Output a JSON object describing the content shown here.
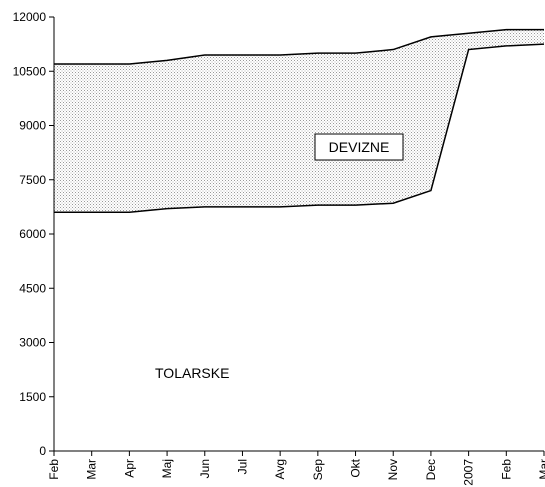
{
  "chart_data": {
    "type": "area",
    "stacked": true,
    "categories": [
      "Feb",
      "Mar",
      "Apr",
      "Maj",
      "Jun",
      "Jul",
      "Avg",
      "Sep",
      "Okt",
      "Nov",
      "Dec",
      "2007",
      "Feb",
      "Mar"
    ],
    "series": [
      {
        "name": "TOLARSKE",
        "values": [
          6600,
          6600,
          6600,
          6700,
          6750,
          6750,
          6750,
          6800,
          6800,
          6850,
          7200,
          11100,
          11200,
          11250
        ]
      },
      {
        "name": "DEVIZNE",
        "values": [
          4100,
          4100,
          4100,
          4100,
          4200,
          4200,
          4200,
          4200,
          4200,
          4250,
          4250,
          450,
          450,
          400
        ]
      }
    ],
    "totals": [
      10700,
      10700,
      10700,
      10800,
      10950,
      10950,
      10950,
      11000,
      11000,
      11100,
      11450,
      11550,
      11650,
      11650
    ],
    "annotations": {
      "lower": "TOLARSKE",
      "upper": "DEVIZNE"
    },
    "ylim": [
      0,
      12000
    ],
    "yticks": [
      0,
      1500,
      3000,
      4500,
      6000,
      7500,
      9000,
      10500,
      12000
    ],
    "grid": false,
    "legend": "none",
    "colors": {
      "upper_fill": "#dcdcdc",
      "lines": "#000000"
    }
  }
}
